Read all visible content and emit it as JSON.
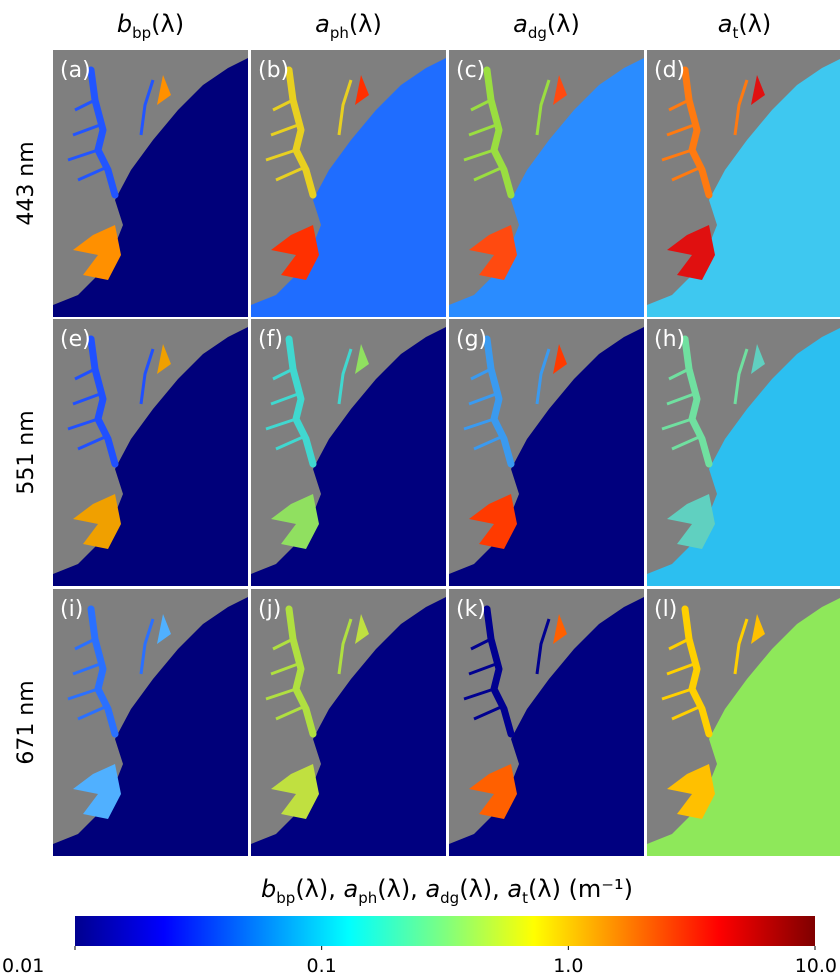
{
  "column_headers": [
    [
      {
        "text": "b",
        "style": "italic"
      },
      {
        "text": "bp",
        "style": "sub"
      },
      {
        "text": "(λ)"
      }
    ],
    [
      {
        "text": "a",
        "style": "italic"
      },
      {
        "text": "ph",
        "style": "sub"
      },
      {
        "text": "(λ)"
      }
    ],
    [
      {
        "text": "a",
        "style": "italic"
      },
      {
        "text": "dg",
        "style": "sub"
      },
      {
        "text": "(λ)"
      }
    ],
    [
      {
        "text": "a",
        "style": "italic"
      },
      {
        "text": "t",
        "style": "sub"
      },
      {
        "text": "(λ)"
      }
    ]
  ],
  "row_labels": [
    "443 nm",
    "551 nm",
    "671 nm"
  ],
  "panel_labels": [
    "(a)",
    "(b)",
    "(c)",
    "(d)",
    "(e)",
    "(f)",
    "(g)",
    "(h)",
    "(i)",
    "(j)",
    "(k)",
    "(l)"
  ],
  "colorbar": {
    "label": [
      {
        "text": "b",
        "style": "italic"
      },
      {
        "text": "bp",
        "style": "sub"
      },
      {
        "text": "(λ), "
      },
      {
        "text": "a",
        "style": "italic"
      },
      {
        "text": "ph",
        "style": "sub"
      },
      {
        "text": "(λ), "
      },
      {
        "text": "a",
        "style": "italic"
      },
      {
        "text": "dg",
        "style": "sub"
      },
      {
        "text": "(λ), "
      },
      {
        "text": "a",
        "style": "italic"
      },
      {
        "text": "t",
        "style": "sub"
      },
      {
        "text": "(λ) (m⁻¹)"
      }
    ],
    "scale": "log",
    "lim": [
      0.01,
      10
    ],
    "ticks": [
      0.01,
      0.1,
      {
        "value": 1,
        "label": "1.0"
      },
      {
        "value": 10,
        "label": "10.0"
      }
    ]
  }
}
